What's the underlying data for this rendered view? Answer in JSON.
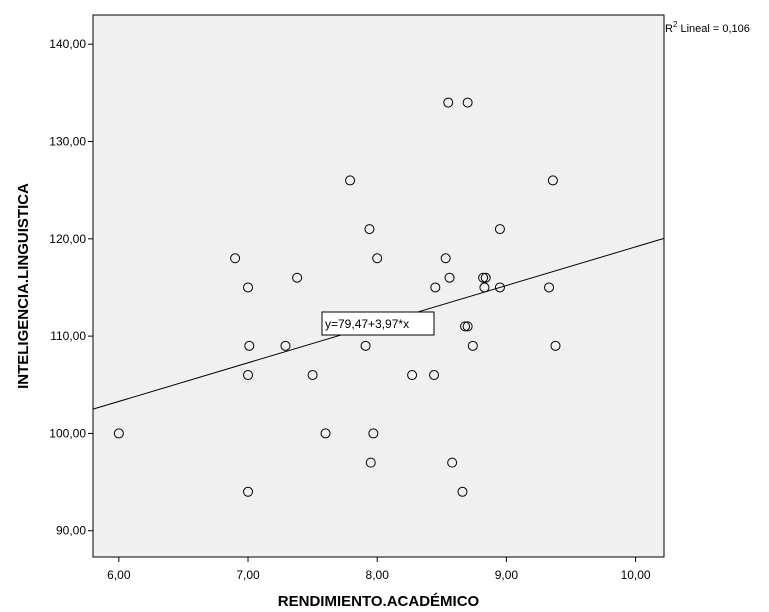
{
  "chart_data": {
    "type": "scatter",
    "xlabel": "RENDIMIENTO.ACADÉMICO",
    "ylabel": "INTELIGENCIA.LINGUISTICA",
    "xlim": [
      5.8,
      10.22
    ],
    "ylim": [
      87.3,
      143.0
    ],
    "x_ticks": [
      6,
      7,
      8,
      9,
      10
    ],
    "x_tick_labels": [
      "6,00",
      "7,00",
      "8,00",
      "9,00",
      "10,00"
    ],
    "y_ticks": [
      90,
      100,
      110,
      120,
      130,
      140
    ],
    "y_tick_labels": [
      "90,00",
      "100,00",
      "110,00",
      "120,00",
      "130,00",
      "140,00"
    ],
    "background_color": "#f0f0f0",
    "grid": false,
    "fit_line": {
      "intercept": 79.47,
      "slope": 3.97,
      "label": "y=79,47+3,97*x"
    },
    "r_squared": {
      "prefix": "R",
      "superscript": "2",
      "text": " Lineal = 0,106"
    },
    "points": [
      [
        6.0,
        100
      ],
      [
        6.9,
        118
      ],
      [
        7.0,
        115
      ],
      [
        7.01,
        109
      ],
      [
        7.0,
        106
      ],
      [
        7.0,
        94
      ],
      [
        7.29,
        109
      ],
      [
        7.38,
        116
      ],
      [
        7.5,
        106
      ],
      [
        7.6,
        100
      ],
      [
        7.79,
        126
      ],
      [
        7.91,
        109
      ],
      [
        7.94,
        121
      ],
      [
        7.95,
        97
      ],
      [
        7.97,
        100
      ],
      [
        8.0,
        118
      ],
      [
        8.27,
        106
      ],
      [
        8.44,
        106
      ],
      [
        8.45,
        115
      ],
      [
        8.53,
        118
      ],
      [
        8.55,
        134
      ],
      [
        8.56,
        116
      ],
      [
        8.58,
        97
      ],
      [
        8.66,
        94
      ],
      [
        8.68,
        111
      ],
      [
        8.7,
        111
      ],
      [
        8.7,
        134
      ],
      [
        8.74,
        109
      ],
      [
        8.82,
        116
      ],
      [
        8.84,
        116
      ],
      [
        8.83,
        115
      ],
      [
        8.95,
        121
      ],
      [
        8.95,
        115
      ],
      [
        9.33,
        115
      ],
      [
        9.36,
        126
      ],
      [
        9.38,
        109
      ]
    ]
  }
}
